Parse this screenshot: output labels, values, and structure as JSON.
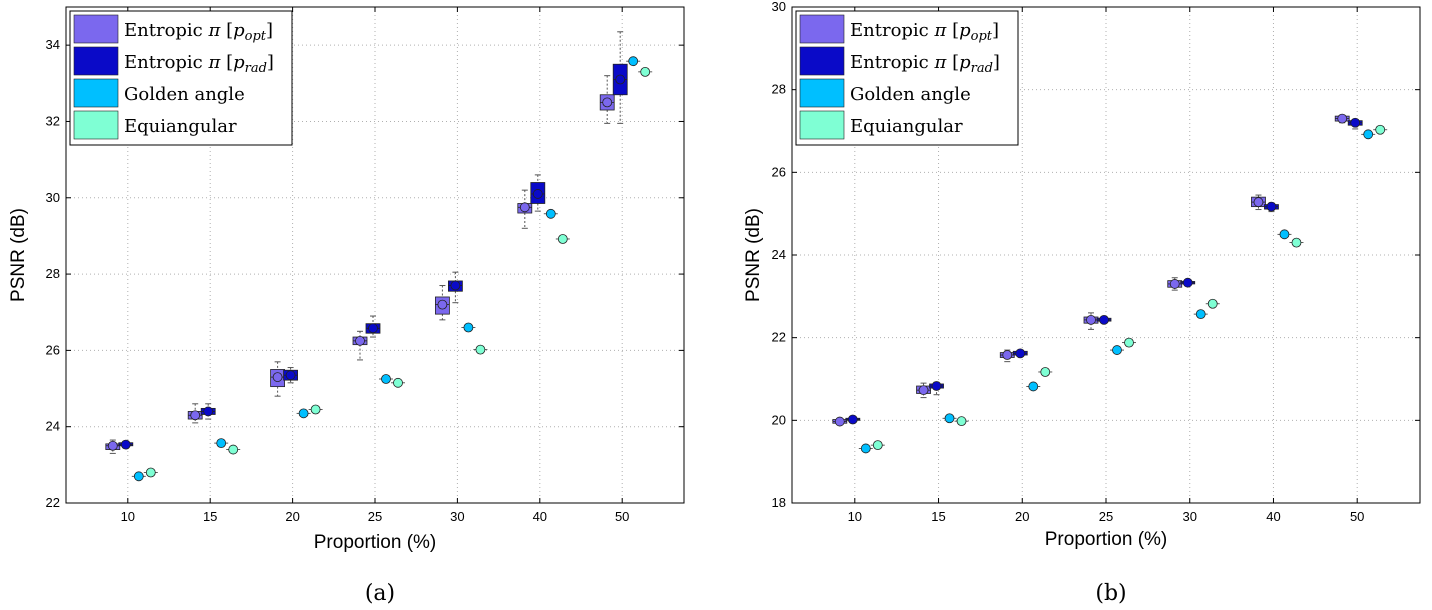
{
  "series_colors": [
    "#7b68ee",
    "#0a0ac8",
    "#00bfff",
    "#7fffd4"
  ],
  "chart_data": [
    {
      "type": "box",
      "caption": "(a)",
      "xlabel": "Proportion (%)",
      "ylabel": "PSNR (dB)",
      "ylim": [
        22,
        35
      ],
      "yticks": [
        22,
        24,
        26,
        28,
        30,
        32,
        34
      ],
      "categories": [
        "10",
        "15",
        "20",
        "25",
        "30",
        "40",
        "50"
      ],
      "grid": true,
      "legend_position": "top-left",
      "legend": [
        {
          "pre": "Entropic ",
          "pi": "π",
          "bracket_open": " [",
          "p": "p",
          "sub": "opt",
          "bracket_close": "]"
        },
        {
          "pre": "Entropic ",
          "pi": "π",
          "bracket_open": " [",
          "p": "p",
          "sub": "rad",
          "bracket_close": "]"
        },
        {
          "plain": "Golden angle"
        },
        {
          "plain": "Equiangular"
        }
      ],
      "series": [
        {
          "box": [
            {
              "min": 23.3,
              "q1": 23.4,
              "median": 23.5,
              "q3": 23.55,
              "max": 23.65
            },
            {
              "min": 24.1,
              "q1": 24.2,
              "median": 24.3,
              "q3": 24.4,
              "max": 24.6
            },
            {
              "min": 24.8,
              "q1": 25.05,
              "median": 25.3,
              "q3": 25.5,
              "max": 25.7
            },
            {
              "min": 25.75,
              "q1": 26.15,
              "median": 26.25,
              "q3": 26.35,
              "max": 26.5
            },
            {
              "min": 26.8,
              "q1": 26.95,
              "median": 27.2,
              "q3": 27.4,
              "max": 27.7
            },
            {
              "min": 29.2,
              "q1": 29.6,
              "median": 29.75,
              "q3": 29.85,
              "max": 30.2
            },
            {
              "min": 31.95,
              "q1": 32.3,
              "median": 32.5,
              "q3": 32.7,
              "max": 33.2
            }
          ]
        },
        {
          "box": [
            {
              "min": 23.45,
              "q1": 23.5,
              "median": 23.53,
              "q3": 23.58,
              "max": 23.62
            },
            {
              "min": 24.2,
              "q1": 24.32,
              "median": 24.4,
              "q3": 24.48,
              "max": 24.6
            },
            {
              "min": 25.15,
              "q1": 25.22,
              "median": 25.35,
              "q3": 25.48,
              "max": 25.55
            },
            {
              "min": 26.35,
              "q1": 26.45,
              "median": 26.58,
              "q3": 26.7,
              "max": 26.9
            },
            {
              "min": 27.25,
              "q1": 27.55,
              "median": 27.7,
              "q3": 27.82,
              "max": 28.05
            },
            {
              "min": 29.65,
              "q1": 29.85,
              "median": 30.1,
              "q3": 30.4,
              "max": 30.6
            },
            {
              "min": 31.95,
              "q1": 32.7,
              "median": 33.1,
              "q3": 33.5,
              "max": 34.35
            }
          ]
        },
        {
          "point": [
            22.7,
            23.57,
            24.35,
            25.25,
            26.6,
            29.58,
            33.58
          ]
        },
        {
          "point": [
            22.8,
            23.4,
            24.45,
            25.15,
            26.02,
            28.92,
            33.3
          ]
        }
      ]
    },
    {
      "type": "box",
      "caption": "(b)",
      "xlabel": "Proportion (%)",
      "ylabel": "PSNR (dB)",
      "ylim": [
        18,
        30
      ],
      "yticks": [
        18,
        20,
        22,
        24,
        26,
        28,
        30
      ],
      "categories": [
        "10",
        "15",
        "20",
        "25",
        "30",
        "40",
        "50"
      ],
      "grid": true,
      "legend_position": "top-left",
      "legend": [
        {
          "pre": "Entropic ",
          "pi": "π",
          "bracket_open": " [",
          "p": "p",
          "sub": "opt",
          "bracket_close": "]"
        },
        {
          "pre": "Entropic ",
          "pi": "π",
          "bracket_open": " [",
          "p": "p",
          "sub": "rad",
          "bracket_close": "]"
        },
        {
          "plain": "Golden angle"
        },
        {
          "plain": "Equiangular"
        }
      ],
      "series": [
        {
          "box": [
            {
              "min": 19.9,
              "q1": 19.93,
              "median": 19.97,
              "q3": 20.02,
              "max": 20.05
            },
            {
              "min": 20.55,
              "q1": 20.65,
              "median": 20.73,
              "q3": 20.83,
              "max": 20.9
            },
            {
              "min": 21.42,
              "q1": 21.52,
              "median": 21.58,
              "q3": 21.64,
              "max": 21.7
            },
            {
              "min": 22.2,
              "q1": 22.35,
              "median": 22.43,
              "q3": 22.5,
              "max": 22.6
            },
            {
              "min": 23.15,
              "q1": 23.22,
              "median": 23.3,
              "q3": 23.38,
              "max": 23.45
            },
            {
              "min": 25.1,
              "q1": 25.17,
              "median": 25.28,
              "q3": 25.4,
              "max": 25.45
            },
            {
              "min": 27.2,
              "q1": 27.24,
              "median": 27.3,
              "q3": 27.36,
              "max": 27.38
            }
          ]
        },
        {
          "box": [
            {
              "min": 19.98,
              "q1": 20.0,
              "median": 20.02,
              "q3": 20.05,
              "max": 20.07
            },
            {
              "min": 20.62,
              "q1": 20.78,
              "median": 20.83,
              "q3": 20.88,
              "max": 20.92
            },
            {
              "min": 21.55,
              "q1": 21.58,
              "median": 21.62,
              "q3": 21.67,
              "max": 21.7
            },
            {
              "min": 22.36,
              "q1": 22.4,
              "median": 22.43,
              "q3": 22.47,
              "max": 22.5
            },
            {
              "min": 23.27,
              "q1": 23.3,
              "median": 23.33,
              "q3": 23.36,
              "max": 23.38
            },
            {
              "min": 25.05,
              "q1": 25.11,
              "median": 25.17,
              "q3": 25.22,
              "max": 25.26
            },
            {
              "min": 27.05,
              "q1": 27.14,
              "median": 27.2,
              "q3": 27.25,
              "max": 27.28
            }
          ]
        },
        {
          "point": [
            19.32,
            20.05,
            20.82,
            21.7,
            22.57,
            24.5,
            26.92
          ]
        },
        {
          "point": [
            19.4,
            19.98,
            21.17,
            21.88,
            22.82,
            24.3,
            27.03
          ]
        }
      ]
    }
  ]
}
